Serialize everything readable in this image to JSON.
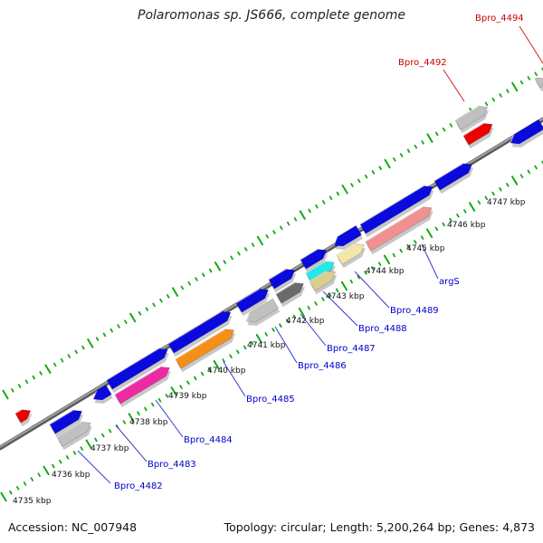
{
  "title": "Polaromonas sp. JS666, complete genome",
  "footer": {
    "accession": "Accession: NC_007948",
    "summary": "Topology: circular; Length: 5,200,264 bp; Genes: 4,873"
  },
  "kbp_labels": [
    "4735 kbp",
    "4736 kbp",
    "4737 kbp",
    "4738 kbp",
    "4739 kbp",
    "4740 kbp",
    "4741 kbp",
    "4742 kbp",
    "4743 kbp",
    "4744 kbp",
    "4745 kbp",
    "4746 kbp",
    "4747 kbp"
  ],
  "gene_labels": [
    {
      "text": "Bpro_4482",
      "color": "#0000cc"
    },
    {
      "text": "Bpro_4483",
      "color": "#0000cc"
    },
    {
      "text": "Bpro_4484",
      "color": "#0000cc"
    },
    {
      "text": "Bpro_4485",
      "color": "#0000cc"
    },
    {
      "text": "Bpro_4486",
      "color": "#0000cc"
    },
    {
      "text": "Bpro_4487",
      "color": "#0000cc"
    },
    {
      "text": "Bpro_4488",
      "color": "#0000cc"
    },
    {
      "text": "Bpro_4489",
      "color": "#0000cc"
    },
    {
      "text": "argS",
      "color": "#0000cc"
    },
    {
      "text": "Bpro_4492",
      "color": "#cc0000"
    },
    {
      "text": "Bpro_4494",
      "color": "#cc0000"
    }
  ],
  "colors": {
    "blue": "#0a0adc",
    "grey": "#c0c0c0",
    "darkgrey": "#6a6a6a",
    "red": "#ee0000",
    "pink": "#ee2aa2",
    "orange": "#f49018",
    "cyan": "#22e8ea",
    "tan": "#d8cf8e",
    "khaki": "#f2e6a8",
    "salmon": "#f09090",
    "tick": "#11aa11",
    "backbone": "#888888"
  }
}
